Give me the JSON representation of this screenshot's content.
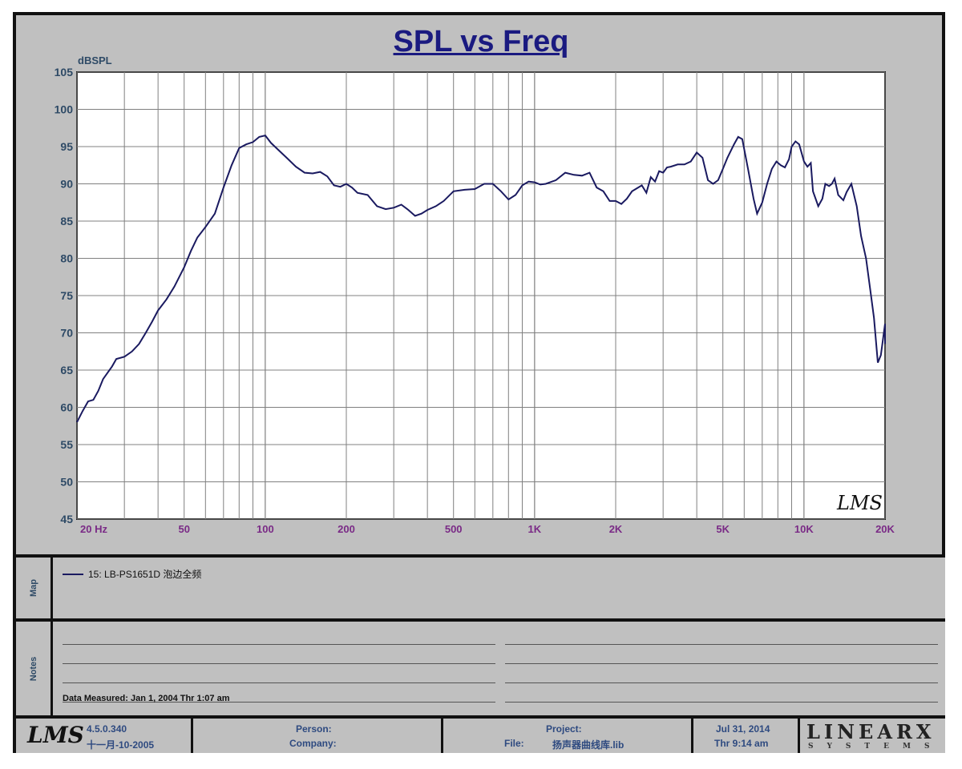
{
  "chart_data": {
    "type": "line",
    "title": "SPL vs Freq",
    "ylabel": "dBSPL",
    "x_scale": "log",
    "xlim": [
      20,
      20000
    ],
    "ylim": [
      45,
      105
    ],
    "y_ticks": [
      "45",
      "50",
      "55",
      "60",
      "65",
      "70",
      "75",
      "80",
      "85",
      "90",
      "95",
      "100",
      "105"
    ],
    "y_tick_values": [
      45,
      50,
      55,
      60,
      65,
      70,
      75,
      80,
      85,
      90,
      95,
      100,
      105
    ],
    "x_ticks": [
      {
        "value": 20,
        "label": "20  Hz"
      },
      {
        "value": 50,
        "label": "50"
      },
      {
        "value": 100,
        "label": "100"
      },
      {
        "value": 200,
        "label": "200"
      },
      {
        "value": 500,
        "label": "500"
      },
      {
        "value": 1000,
        "label": "1K"
      },
      {
        "value": 2000,
        "label": "2K"
      },
      {
        "value": 5000,
        "label": "5K"
      },
      {
        "value": 10000,
        "label": "10K"
      },
      {
        "value": 20000,
        "label": "20K"
      }
    ],
    "grid": true,
    "series": [
      {
        "name": "15: LB-PS1651D 泡边全频",
        "color": "#1a1a60",
        "points": [
          [
            20,
            58
          ],
          [
            21,
            59.5
          ],
          [
            22,
            60.8
          ],
          [
            23,
            61
          ],
          [
            24,
            62.2
          ],
          [
            25,
            63.8
          ],
          [
            27,
            65.5
          ],
          [
            28,
            66.5
          ],
          [
            30,
            66.8
          ],
          [
            32,
            67.5
          ],
          [
            34,
            68.5
          ],
          [
            36,
            70
          ],
          [
            38,
            71.5
          ],
          [
            40,
            73
          ],
          [
            43,
            74.5
          ],
          [
            46,
            76.2
          ],
          [
            50,
            78.8
          ],
          [
            53,
            81
          ],
          [
            56,
            82.8
          ],
          [
            60,
            84.2
          ],
          [
            65,
            86
          ],
          [
            70,
            89.5
          ],
          [
            75,
            92.5
          ],
          [
            80,
            94.8
          ],
          [
            85,
            95.3
          ],
          [
            90,
            95.6
          ],
          [
            95,
            96.3
          ],
          [
            100,
            96.5
          ],
          [
            105,
            95.5
          ],
          [
            110,
            94.8
          ],
          [
            120,
            93.5
          ],
          [
            130,
            92.3
          ],
          [
            140,
            91.5
          ],
          [
            150,
            91.4
          ],
          [
            160,
            91.6
          ],
          [
            170,
            91
          ],
          [
            180,
            89.8
          ],
          [
            190,
            89.6
          ],
          [
            200,
            90
          ],
          [
            210,
            89.5
          ],
          [
            220,
            88.8
          ],
          [
            240,
            88.5
          ],
          [
            260,
            87
          ],
          [
            280,
            86.6
          ],
          [
            300,
            86.8
          ],
          [
            320,
            87.2
          ],
          [
            340,
            86.5
          ],
          [
            360,
            85.7
          ],
          [
            380,
            86
          ],
          [
            400,
            86.5
          ],
          [
            430,
            87
          ],
          [
            460,
            87.7
          ],
          [
            500,
            89
          ],
          [
            550,
            89.2
          ],
          [
            600,
            89.3
          ],
          [
            650,
            90
          ],
          [
            700,
            90
          ],
          [
            750,
            89
          ],
          [
            800,
            87.9
          ],
          [
            850,
            88.5
          ],
          [
            900,
            89.8
          ],
          [
            950,
            90.3
          ],
          [
            1000,
            90.2
          ],
          [
            1050,
            89.9
          ],
          [
            1100,
            90
          ],
          [
            1200,
            90.5
          ],
          [
            1300,
            91.5
          ],
          [
            1400,
            91.2
          ],
          [
            1500,
            91.1
          ],
          [
            1600,
            91.5
          ],
          [
            1700,
            89.5
          ],
          [
            1800,
            89
          ],
          [
            1900,
            87.7
          ],
          [
            2000,
            87.7
          ],
          [
            2100,
            87.3
          ],
          [
            2200,
            88
          ],
          [
            2300,
            89
          ],
          [
            2500,
            89.8
          ],
          [
            2600,
            88.8
          ],
          [
            2700,
            90.9
          ],
          [
            2800,
            90.3
          ],
          [
            2900,
            91.7
          ],
          [
            3000,
            91.5
          ],
          [
            3100,
            92.2
          ],
          [
            3200,
            92.3
          ],
          [
            3400,
            92.6
          ],
          [
            3600,
            92.6
          ],
          [
            3800,
            93
          ],
          [
            4000,
            94.2
          ],
          [
            4200,
            93.5
          ],
          [
            4400,
            90.5
          ],
          [
            4600,
            90
          ],
          [
            4800,
            90.5
          ],
          [
            5000,
            92
          ],
          [
            5200,
            93.5
          ],
          [
            5500,
            95.3
          ],
          [
            5700,
            96.3
          ],
          [
            5900,
            96
          ],
          [
            6200,
            92
          ],
          [
            6500,
            88
          ],
          [
            6700,
            86
          ],
          [
            7000,
            87.5
          ],
          [
            7300,
            90
          ],
          [
            7600,
            92
          ],
          [
            7900,
            93
          ],
          [
            8200,
            92.5
          ],
          [
            8500,
            92.2
          ],
          [
            8800,
            93.3
          ],
          [
            9000,
            95
          ],
          [
            9300,
            95.7
          ],
          [
            9600,
            95.3
          ],
          [
            10000,
            93
          ],
          [
            10300,
            92.3
          ],
          [
            10600,
            92.8
          ],
          [
            10800,
            89
          ],
          [
            11300,
            87
          ],
          [
            11700,
            88
          ],
          [
            12000,
            90
          ],
          [
            12400,
            89.7
          ],
          [
            12700,
            90
          ],
          [
            13000,
            90.7
          ],
          [
            13400,
            88.5
          ],
          [
            14000,
            87.8
          ],
          [
            14400,
            88.9
          ],
          [
            15000,
            90
          ],
          [
            15700,
            87
          ],
          [
            16300,
            83
          ],
          [
            17000,
            80
          ],
          [
            17600,
            76
          ],
          [
            18200,
            72
          ],
          [
            18800,
            66
          ],
          [
            19300,
            67
          ],
          [
            19800,
            70
          ],
          [
            20000,
            71.2
          ],
          [
            20000,
            68.5
          ]
        ]
      }
    ]
  },
  "map": {
    "side_label": "Map",
    "legend_label": "15: LB-PS1651D 泡边全频"
  },
  "notes": {
    "side_label": "Notes",
    "measured": "Data Measured: Jan  1, 2004  Thr  1:07 am"
  },
  "footer": {
    "logo_text": "LMS",
    "version": "4.5.0.340",
    "version_date": "十一月-10-2005",
    "person_label": "Person:",
    "company_label": "Company:",
    "project_label": "Project:",
    "file_label": "File:",
    "file_value": "扬声器曲线库.lib",
    "date": "Jul 31, 2014",
    "time": "Thr  9:14 am",
    "brand": "LINEARX",
    "brand_sub": "SYSTEMS"
  },
  "watermark": "LMS"
}
